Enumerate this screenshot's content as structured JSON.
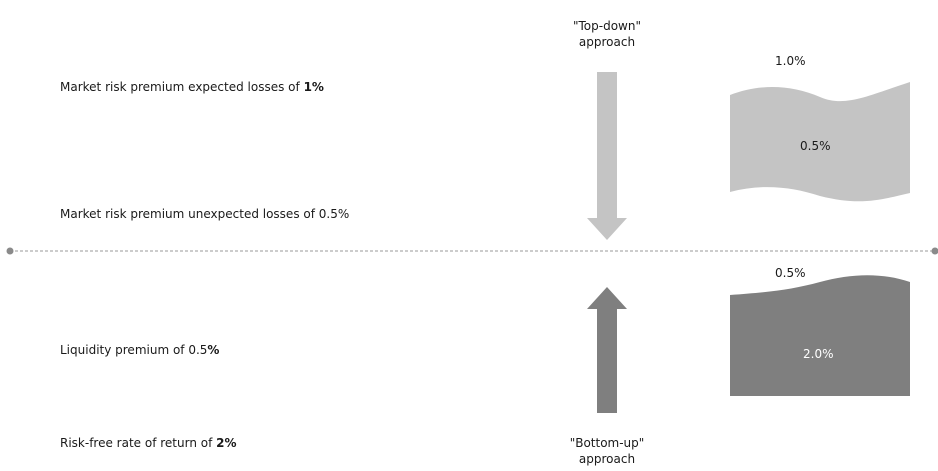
{
  "labels": {
    "market_expected_prefix": "Market risk premium expected losses of ",
    "market_expected_value": "1%",
    "market_unexpected": "Market risk premium unexpected losses of 0.5%",
    "liquidity_prefix": "Liquidity premium of 0.5",
    "liquidity_value": "%",
    "risk_free_prefix": "Risk-free rate of return of ",
    "risk_free_value": "2%"
  },
  "approaches": {
    "top_down_line1": "\"Top-down\"",
    "top_down_line2": "approach",
    "bottom_up_line1": "\"Bottom-up\"",
    "bottom_up_line2": "approach"
  },
  "blocks": {
    "upper_top_label": "1.0%",
    "upper_inner_label": "0.5%",
    "lower_top_label": "0.5%",
    "lower_inner_label": "2.0%"
  },
  "colors": {
    "light_grey": "#c4c4c4",
    "dark_grey": "#7f7f7f",
    "divider": "#9a9a9a"
  }
}
